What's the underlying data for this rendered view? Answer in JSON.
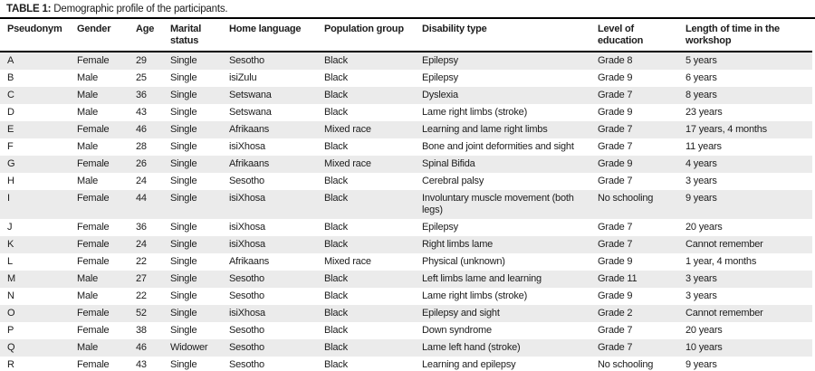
{
  "caption": {
    "label": "TABLE 1:",
    "text": " Demographic profile of the participants."
  },
  "colors": {
    "stripe": "#ebebeb",
    "rule": "#000000",
    "text": "#1c1c1c",
    "background": "#ffffff"
  },
  "table": {
    "columns": [
      "Pseudonym",
      "Gender",
      "Age",
      "Marital status",
      "Home language",
      "Population group",
      "Disability type",
      "Level of education",
      "Length of time in the workshop"
    ],
    "rows": [
      [
        "A",
        "Female",
        "29",
        "Single",
        "Sesotho",
        "Black",
        "Epilepsy",
        "Grade 8",
        "5 years"
      ],
      [
        "B",
        "Male",
        "25",
        "Single",
        "isiZulu",
        "Black",
        "Epilepsy",
        "Grade 9",
        "6 years"
      ],
      [
        "C",
        "Male",
        "36",
        "Single",
        "Setswana",
        "Black",
        "Dyslexia",
        "Grade 7",
        "8 years"
      ],
      [
        "D",
        "Male",
        "43",
        "Single",
        "Setswana",
        "Black",
        "Lame right limbs (stroke)",
        "Grade 9",
        "23 years"
      ],
      [
        "E",
        "Female",
        "46",
        "Single",
        "Afrikaans",
        "Mixed race",
        "Learning and lame right limbs",
        "Grade 7",
        "17 years, 4 months"
      ],
      [
        "F",
        "Male",
        "28",
        "Single",
        "isiXhosa",
        "Black",
        "Bone and joint deformities and sight",
        "Grade 7",
        "11 years"
      ],
      [
        "G",
        "Female",
        "26",
        "Single",
        "Afrikaans",
        "Mixed race",
        "Spinal Bifida",
        "Grade 9",
        "4 years"
      ],
      [
        "H",
        "Male",
        "24",
        "Single",
        "Sesotho",
        "Black",
        "Cerebral palsy",
        "Grade 7",
        "3 years"
      ],
      [
        "I",
        "Female",
        "44",
        "Single",
        "isiXhosa",
        "Black",
        "Involuntary muscle movement (both legs)",
        "No schooling",
        "9 years"
      ],
      [
        "J",
        "Female",
        "36",
        "Single",
        "isiXhosa",
        "Black",
        "Epilepsy",
        "Grade 7",
        "20 years"
      ],
      [
        "K",
        "Female",
        "24",
        "Single",
        "isiXhosa",
        "Black",
        "Right limbs lame",
        "Grade 7",
        "Cannot remember"
      ],
      [
        "L",
        "Female",
        "22",
        "Single",
        "Afrikaans",
        "Mixed race",
        "Physical (unknown)",
        "Grade 9",
        "1 year, 4 months"
      ],
      [
        "M",
        "Male",
        "27",
        "Single",
        "Sesotho",
        "Black",
        "Left limbs lame and learning",
        "Grade 11",
        "3 years"
      ],
      [
        "N",
        "Male",
        "22",
        "Single",
        "Sesotho",
        "Black",
        "Lame right limbs (stroke)",
        "Grade 9",
        "3 years"
      ],
      [
        "O",
        "Female",
        "52",
        "Single",
        "isiXhosa",
        "Black",
        "Epilepsy and sight",
        "Grade 2",
        "Cannot remember"
      ],
      [
        "P",
        "Female",
        "38",
        "Single",
        "Sesotho",
        "Black",
        "Down syndrome",
        "Grade 7",
        "20 years"
      ],
      [
        "Q",
        "Male",
        "46",
        "Widower",
        "Sesotho",
        "Black",
        "Lame left hand (stroke)",
        "Grade 7",
        "10 years"
      ],
      [
        "R",
        "Female",
        "43",
        "Single",
        "Sesotho",
        "Black",
        "Learning and epilepsy",
        "No schooling",
        "9 years"
      ]
    ]
  }
}
